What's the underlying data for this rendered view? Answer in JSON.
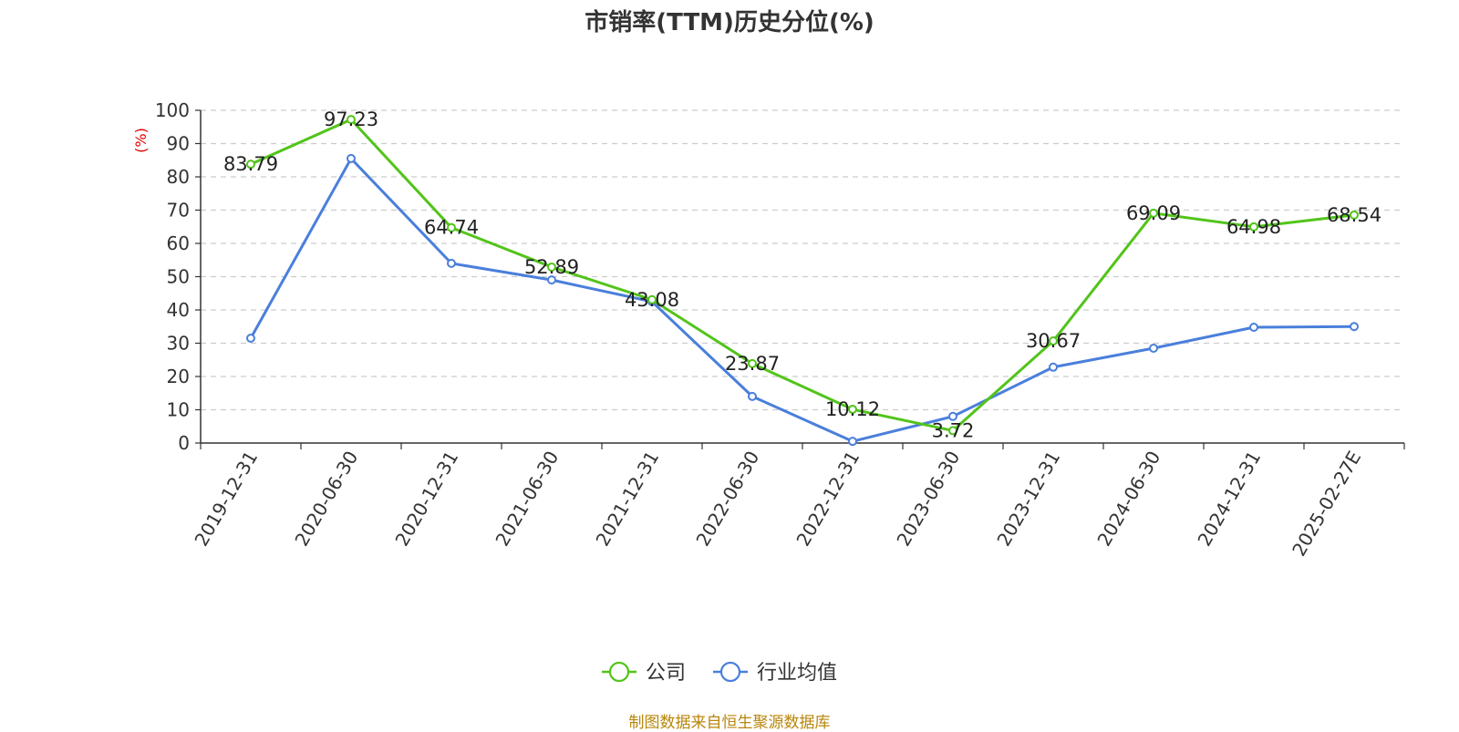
{
  "chart_data": {
    "type": "line",
    "title": "市销率(TTM)历史分位(%)",
    "ylabel": "(%)",
    "ylim": [
      0,
      100
    ],
    "yticks": [
      0,
      10,
      20,
      30,
      40,
      50,
      60,
      70,
      80,
      90,
      100
    ],
    "grid": true,
    "legend_position": "bottom",
    "categories": [
      "2019-12-31",
      "2020-06-30",
      "2020-12-31",
      "2021-06-30",
      "2021-12-31",
      "2022-06-30",
      "2022-12-31",
      "2023-06-30",
      "2023-12-31",
      "2024-06-30",
      "2024-12-31",
      "2025-02-27E"
    ],
    "series": [
      {
        "name": "公司",
        "color": "#52c41a",
        "show_labels": true,
        "values": [
          83.79,
          97.23,
          64.74,
          52.89,
          43.08,
          23.87,
          10.12,
          3.72,
          30.67,
          69.09,
          64.98,
          68.54
        ]
      },
      {
        "name": "行业均值",
        "color": "#4a7fdb",
        "show_labels": false,
        "values": [
          31.5,
          85.5,
          54,
          49,
          42.5,
          14,
          0.5,
          8,
          22.8,
          28.5,
          34.8,
          35
        ]
      }
    ]
  },
  "source_note": "制图数据来自恒生聚源数据库"
}
